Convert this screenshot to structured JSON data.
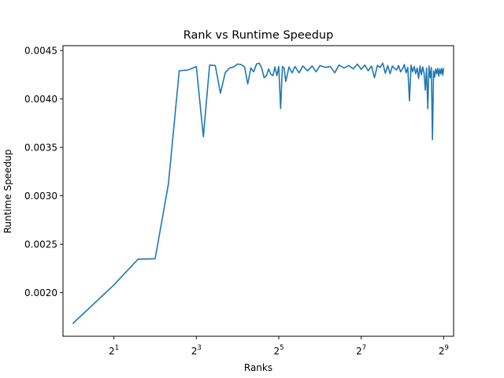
{
  "chart_data": {
    "type": "line",
    "title": "Rank vs Runtime Speedup",
    "xlabel": "Ranks",
    "ylabel": "Runtime Speedup",
    "xscale": "log2",
    "xlim": [
      0.85,
      605
    ],
    "ylim": [
      0.00155,
      0.00455
    ],
    "grid": false,
    "line_color": "#1f77b4",
    "x_ticks": [
      {
        "base": "2",
        "exp": "1",
        "value": 2
      },
      {
        "base": "2",
        "exp": "3",
        "value": 8
      },
      {
        "base": "2",
        "exp": "5",
        "value": 32
      },
      {
        "base": "2",
        "exp": "7",
        "value": 128
      },
      {
        "base": "2",
        "exp": "9",
        "value": 512
      }
    ],
    "y_ticks": [
      {
        "label": "0.0020",
        "value": 0.002
      },
      {
        "label": "0.0025",
        "value": 0.0025
      },
      {
        "label": "0.0030",
        "value": 0.003
      },
      {
        "label": "0.0035",
        "value": 0.0035
      },
      {
        "label": "0.0040",
        "value": 0.004
      },
      {
        "label": "0.0045",
        "value": 0.0045
      }
    ],
    "series": [
      {
        "x": [
          1,
          2,
          3,
          4,
          5,
          6,
          7,
          8,
          9,
          10,
          11,
          12,
          13,
          14,
          15,
          16,
          17,
          18,
          19,
          20,
          21,
          22,
          23,
          24,
          25,
          26,
          27,
          28,
          29,
          30,
          31,
          32,
          33,
          34,
          35,
          36,
          38,
          40,
          42,
          45,
          48,
          52,
          56,
          60,
          64,
          70,
          76,
          82,
          88,
          96,
          104,
          112,
          120,
          128,
          136,
          144,
          152,
          160,
          168,
          176,
          184,
          192,
          200,
          208,
          216,
          224,
          232,
          240,
          248,
          256,
          264,
          272,
          280,
          288,
          296,
          304,
          312,
          320,
          328,
          336,
          344,
          352,
          360,
          368,
          376,
          384,
          392,
          400,
          408,
          416,
          424,
          432,
          440,
          448,
          456,
          464,
          472,
          480,
          488,
          496,
          504,
          512
        ],
        "y": [
          0.00168,
          0.00208,
          0.002345,
          0.00235,
          0.00312,
          0.00429,
          0.0043,
          0.004335,
          0.00361,
          0.00435,
          0.004345,
          0.00406,
          0.00427,
          0.00432,
          0.00433,
          0.00436,
          0.004355,
          0.00433,
          0.004155,
          0.00432,
          0.00428,
          0.00436,
          0.00437,
          0.00432,
          0.00422,
          0.00424,
          0.00431,
          0.004255,
          0.00424,
          0.00433,
          0.00424,
          0.004335,
          0.0039,
          0.004335,
          0.00432,
          0.00418,
          0.00433,
          0.00427,
          0.004335,
          0.00427,
          0.00434,
          0.00429,
          0.00434,
          0.00428,
          0.004345,
          0.004325,
          0.004335,
          0.00427,
          0.00435,
          0.00432,
          0.004345,
          0.00431,
          0.00436,
          0.004305,
          0.00435,
          0.00429,
          0.00434,
          0.00422,
          0.004345,
          0.004325,
          0.00437,
          0.004265,
          0.004345,
          0.00426,
          0.00434,
          0.004315,
          0.0043,
          0.004345,
          0.00428,
          0.00431,
          0.004355,
          0.00427,
          0.004325,
          0.00398,
          0.00435,
          0.00428,
          0.004335,
          0.00426,
          0.00432,
          0.00421,
          0.00434,
          0.00425,
          0.00433,
          0.00427,
          0.00409,
          0.00432,
          0.0039,
          0.00434,
          0.00422,
          0.004325,
          0.00358,
          0.00429,
          0.004225,
          0.00431,
          0.00426,
          0.004315,
          0.004235,
          0.00431,
          0.00426,
          0.004315,
          0.004245,
          0.00432
        ]
      }
    ]
  }
}
